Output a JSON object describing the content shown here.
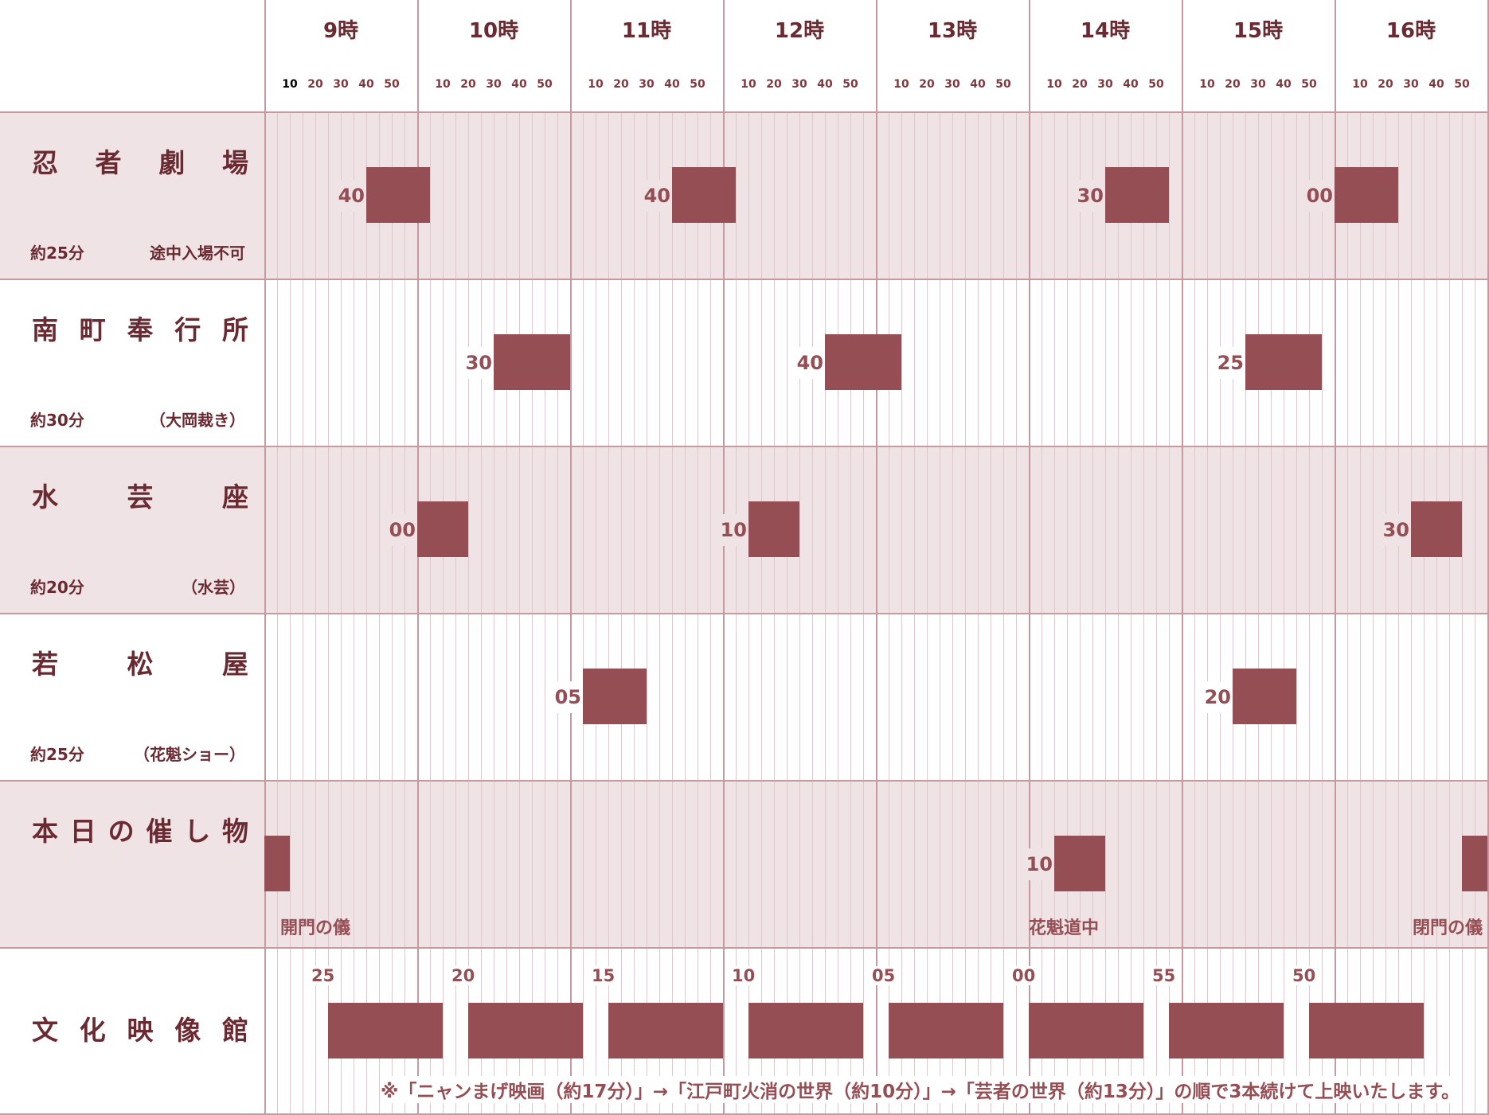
{
  "hours": [
    "9時",
    "10時",
    "11時",
    "12時",
    "13時",
    "14時",
    "15時",
    "16時"
  ],
  "minute_ticks": [
    "10",
    "20",
    "30",
    "40",
    "50"
  ],
  "colors": {
    "accent": "#944e54",
    "band": "#efe3e5",
    "line": "#c49aa0",
    "text": "#6a2a32"
  },
  "venues": [
    {
      "name": "忍者劇場",
      "duration": "約25分",
      "note": "途中入場不可",
      "shaded": true,
      "shows": [
        {
          "time": "40",
          "hour": 9,
          "min": 40,
          "len": 25
        },
        {
          "time": "40",
          "hour": 11,
          "min": 40,
          "len": 25
        },
        {
          "time": "30",
          "hour": 14,
          "min": 30,
          "len": 25
        },
        {
          "time": "00",
          "hour": 16,
          "min": 0,
          "len": 25
        }
      ]
    },
    {
      "name": "南町奉行所",
      "duration": "約30分",
      "note": "（大岡裁き）",
      "shaded": false,
      "shows": [
        {
          "time": "30",
          "hour": 10,
          "min": 30,
          "len": 30
        },
        {
          "time": "40",
          "hour": 12,
          "min": 40,
          "len": 30
        },
        {
          "time": "25",
          "hour": 15,
          "min": 25,
          "len": 30
        }
      ]
    },
    {
      "name": "水芸座",
      "duration": "約20分",
      "note": "（水芸）",
      "shaded": true,
      "shows": [
        {
          "time": "00",
          "hour": 10,
          "min": 0,
          "len": 20
        },
        {
          "time": "10",
          "hour": 12,
          "min": 10,
          "len": 20
        },
        {
          "time": "30",
          "hour": 16,
          "min": 30,
          "len": 20
        }
      ]
    },
    {
      "name": "若松屋",
      "duration": "約25分",
      "note": "（花魁ショー）",
      "shaded": false,
      "shows": [
        {
          "time": "05",
          "hour": 11,
          "min": 5,
          "len": 25
        },
        {
          "time": "20",
          "hour": 15,
          "min": 20,
          "len": 25
        }
      ]
    }
  ],
  "events": {
    "name": "本日の催し物",
    "items": [
      {
        "label": "開門の儀",
        "time": "",
        "hour": 9,
        "min": 0,
        "len": 10
      },
      {
        "label": "花魁道中",
        "time": "10",
        "hour": 14,
        "min": 10,
        "len": 20
      },
      {
        "label": "閉門の儀",
        "time": "",
        "hour": 16,
        "min": 50,
        "len": 10
      }
    ]
  },
  "cinema": {
    "name": "文化映像館",
    "starts": [
      {
        "time": "25",
        "hour": 9,
        "min": 25
      },
      {
        "time": "20",
        "hour": 10,
        "min": 20
      },
      {
        "time": "15",
        "hour": 11,
        "min": 15
      },
      {
        "time": "10",
        "hour": 12,
        "min": 10
      },
      {
        "time": "05",
        "hour": 13,
        "min": 5
      },
      {
        "time": "00",
        "hour": 14,
        "min": 0
      },
      {
        "time": "55",
        "hour": 14,
        "min": 55
      },
      {
        "time": "50",
        "hour": 15,
        "min": 50
      }
    ],
    "run_length_min": 45,
    "note": "※「ニャンまげ映画（約17分）」→「江戸町火消の世界（約10分）」→「芸者の世界（約13分）」の順で3本続けて上映いたします。"
  }
}
